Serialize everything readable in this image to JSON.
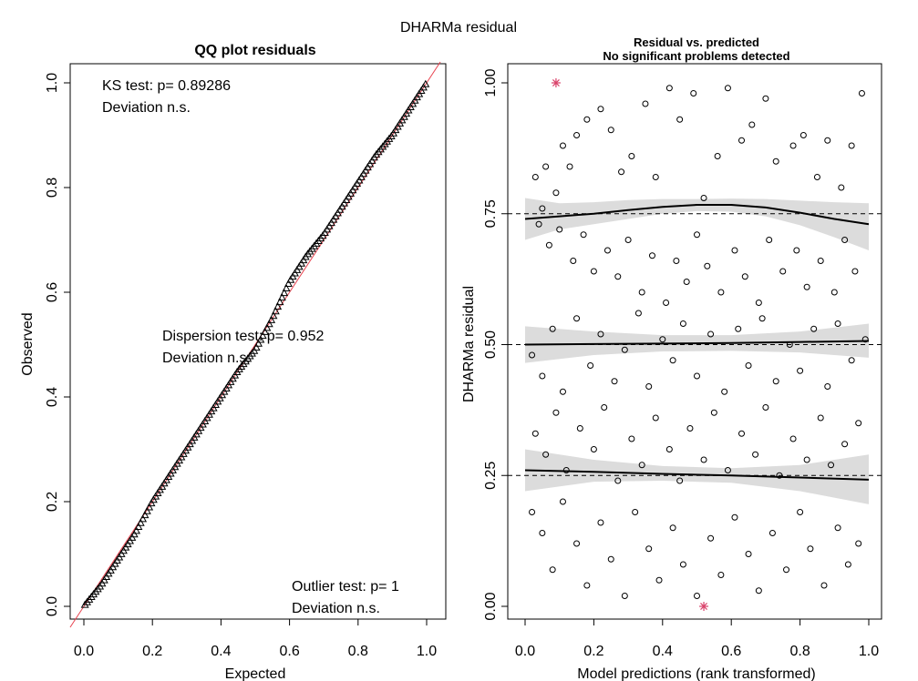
{
  "figure": {
    "title": "DHARMa residual"
  },
  "chart_data": [
    {
      "type": "scatter",
      "panel": "left",
      "title": "QQ plot residuals",
      "xlabel": "Expected",
      "ylabel": "Observed",
      "xlim": [
        0,
        1
      ],
      "ylim": [
        0,
        1
      ],
      "xticks": [
        "0.0",
        "0.2",
        "0.4",
        "0.6",
        "0.8",
        "1.0"
      ],
      "yticks": [
        "0.0",
        "0.2",
        "0.4",
        "0.6",
        "0.8",
        "1.0"
      ],
      "series": [
        {
          "marker": "open-triangle",
          "color": "#000000",
          "x": [
            0.0,
            0.05,
            0.1,
            0.15,
            0.2,
            0.25,
            0.3,
            0.35,
            0.4,
            0.45,
            0.5,
            0.55,
            0.6,
            0.65,
            0.7,
            0.75,
            0.8,
            0.85,
            0.9,
            0.95,
            1.0
          ],
          "y": [
            0.0,
            0.04,
            0.09,
            0.14,
            0.2,
            0.25,
            0.3,
            0.35,
            0.4,
            0.45,
            0.49,
            0.55,
            0.62,
            0.67,
            0.71,
            0.76,
            0.81,
            0.86,
            0.9,
            0.95,
            1.0
          ]
        }
      ],
      "reference_line": {
        "intercept": 0,
        "slope": 1,
        "color": "#e8434f"
      },
      "annotations": [
        {
          "lines": [
            "KS test: p= 0.89286",
            "Deviation  n.s."
          ]
        },
        {
          "lines": [
            "Dispersion test: p= 0.952",
            "Deviation  n.s."
          ]
        },
        {
          "lines": [
            "Outlier test: p= 1",
            "Deviation  n.s."
          ]
        }
      ]
    },
    {
      "type": "scatter",
      "panel": "right",
      "title": "Residual vs. predicted",
      "subtitle": "No significant problems detected",
      "xlabel": "Model predictions (rank transformed)",
      "ylabel": "DHARMa residual",
      "xlim": [
        0,
        1
      ],
      "ylim": [
        0,
        1
      ],
      "xticks": [
        "0.0",
        "0.2",
        "0.4",
        "0.6",
        "0.8",
        "1.0"
      ],
      "yticks": [
        "0.00",
        "0.25",
        "0.50",
        "0.75",
        "1.00"
      ],
      "reference_lines_y": [
        0.25,
        0.5,
        0.75
      ],
      "points": [
        [
          0.03,
          0.82
        ],
        [
          0.05,
          0.76
        ],
        [
          0.06,
          0.84
        ],
        [
          0.09,
          0.79
        ],
        [
          0.11,
          0.88
        ],
        [
          0.13,
          0.84
        ],
        [
          0.15,
          0.9
        ],
        [
          0.18,
          0.93
        ],
        [
          0.22,
          0.95
        ],
        [
          0.25,
          0.91
        ],
        [
          0.28,
          0.83
        ],
        [
          0.31,
          0.86
        ],
        [
          0.35,
          0.96
        ],
        [
          0.38,
          0.82
        ],
        [
          0.42,
          0.99
        ],
        [
          0.45,
          0.93
        ],
        [
          0.49,
          0.98
        ],
        [
          0.52,
          0.78
        ],
        [
          0.56,
          0.86
        ],
        [
          0.59,
          0.99
        ],
        [
          0.63,
          0.89
        ],
        [
          0.66,
          0.92
        ],
        [
          0.7,
          0.97
        ],
        [
          0.73,
          0.85
        ],
        [
          0.78,
          0.88
        ],
        [
          0.81,
          0.9
        ],
        [
          0.85,
          0.82
        ],
        [
          0.88,
          0.89
        ],
        [
          0.92,
          0.8
        ],
        [
          0.95,
          0.88
        ],
        [
          0.98,
          0.98
        ],
        [
          0.04,
          0.73
        ],
        [
          0.07,
          0.69
        ],
        [
          0.1,
          0.72
        ],
        [
          0.14,
          0.66
        ],
        [
          0.17,
          0.71
        ],
        [
          0.2,
          0.64
        ],
        [
          0.24,
          0.68
        ],
        [
          0.27,
          0.63
        ],
        [
          0.3,
          0.7
        ],
        [
          0.34,
          0.6
        ],
        [
          0.37,
          0.67
        ],
        [
          0.41,
          0.58
        ],
        [
          0.44,
          0.66
        ],
        [
          0.47,
          0.62
        ],
        [
          0.5,
          0.71
        ],
        [
          0.53,
          0.65
        ],
        [
          0.57,
          0.6
        ],
        [
          0.61,
          0.68
        ],
        [
          0.64,
          0.63
        ],
        [
          0.68,
          0.58
        ],
        [
          0.71,
          0.7
        ],
        [
          0.75,
          0.64
        ],
        [
          0.79,
          0.68
        ],
        [
          0.82,
          0.61
        ],
        [
          0.86,
          0.66
        ],
        [
          0.9,
          0.6
        ],
        [
          0.93,
          0.7
        ],
        [
          0.96,
          0.64
        ],
        [
          0.02,
          0.48
        ],
        [
          0.05,
          0.44
        ],
        [
          0.08,
          0.53
        ],
        [
          0.11,
          0.41
        ],
        [
          0.15,
          0.55
        ],
        [
          0.19,
          0.46
        ],
        [
          0.22,
          0.52
        ],
        [
          0.26,
          0.43
        ],
        [
          0.29,
          0.49
        ],
        [
          0.33,
          0.56
        ],
        [
          0.36,
          0.42
        ],
        [
          0.4,
          0.51
        ],
        [
          0.43,
          0.47
        ],
        [
          0.46,
          0.54
        ],
        [
          0.5,
          0.44
        ],
        [
          0.54,
          0.52
        ],
        [
          0.58,
          0.41
        ],
        [
          0.62,
          0.53
        ],
        [
          0.65,
          0.46
        ],
        [
          0.69,
          0.55
        ],
        [
          0.73,
          0.43
        ],
        [
          0.77,
          0.5
        ],
        [
          0.8,
          0.45
        ],
        [
          0.84,
          0.53
        ],
        [
          0.88,
          0.42
        ],
        [
          0.91,
          0.54
        ],
        [
          0.95,
          0.47
        ],
        [
          0.99,
          0.51
        ],
        [
          0.03,
          0.33
        ],
        [
          0.06,
          0.29
        ],
        [
          0.09,
          0.37
        ],
        [
          0.12,
          0.26
        ],
        [
          0.16,
          0.34
        ],
        [
          0.2,
          0.3
        ],
        [
          0.23,
          0.38
        ],
        [
          0.27,
          0.24
        ],
        [
          0.31,
          0.32
        ],
        [
          0.34,
          0.27
        ],
        [
          0.38,
          0.36
        ],
        [
          0.42,
          0.3
        ],
        [
          0.45,
          0.24
        ],
        [
          0.48,
          0.34
        ],
        [
          0.52,
          0.28
        ],
        [
          0.55,
          0.37
        ],
        [
          0.59,
          0.26
        ],
        [
          0.63,
          0.33
        ],
        [
          0.67,
          0.29
        ],
        [
          0.7,
          0.38
        ],
        [
          0.74,
          0.25
        ],
        [
          0.78,
          0.32
        ],
        [
          0.82,
          0.28
        ],
        [
          0.86,
          0.36
        ],
        [
          0.89,
          0.27
        ],
        [
          0.93,
          0.31
        ],
        [
          0.97,
          0.35
        ],
        [
          0.02,
          0.18
        ],
        [
          0.05,
          0.14
        ],
        [
          0.08,
          0.07
        ],
        [
          0.11,
          0.2
        ],
        [
          0.15,
          0.12
        ],
        [
          0.18,
          0.04
        ],
        [
          0.22,
          0.16
        ],
        [
          0.25,
          0.09
        ],
        [
          0.29,
          0.02
        ],
        [
          0.32,
          0.18
        ],
        [
          0.36,
          0.11
        ],
        [
          0.39,
          0.05
        ],
        [
          0.43,
          0.15
        ],
        [
          0.46,
          0.08
        ],
        [
          0.5,
          0.02
        ],
        [
          0.54,
          0.13
        ],
        [
          0.57,
          0.06
        ],
        [
          0.61,
          0.17
        ],
        [
          0.65,
          0.1
        ],
        [
          0.68,
          0.03
        ],
        [
          0.72,
          0.14
        ],
        [
          0.76,
          0.07
        ],
        [
          0.8,
          0.18
        ],
        [
          0.83,
          0.11
        ],
        [
          0.87,
          0.04
        ],
        [
          0.91,
          0.15
        ],
        [
          0.94,
          0.08
        ],
        [
          0.97,
          0.12
        ]
      ],
      "outlier_points": [
        [
          0.09,
          1.0
        ],
        [
          0.52,
          0.0
        ]
      ],
      "outlier_color": "#d9426a",
      "quantile_curves": [
        {
          "q": 0.75,
          "x": [
            0.0,
            0.1,
            0.2,
            0.3,
            0.4,
            0.5,
            0.6,
            0.7,
            0.8,
            0.9,
            1.0
          ],
          "y": [
            0.74,
            0.745,
            0.75,
            0.757,
            0.763,
            0.767,
            0.767,
            0.762,
            0.752,
            0.74,
            0.73
          ],
          "band_low": [
            0.7,
            0.72,
            0.73,
            0.74,
            0.75,
            0.755,
            0.754,
            0.745,
            0.728,
            0.705,
            0.68
          ],
          "band_high": [
            0.78,
            0.77,
            0.772,
            0.776,
            0.778,
            0.778,
            0.779,
            0.778,
            0.775,
            0.772,
            0.77
          ]
        },
        {
          "q": 0.5,
          "x": [
            0.0,
            0.2,
            0.4,
            0.6,
            0.8,
            1.0
          ],
          "y": [
            0.5,
            0.501,
            0.502,
            0.503,
            0.505,
            0.507
          ],
          "band_low": [
            0.465,
            0.48,
            0.487,
            0.488,
            0.485,
            0.475
          ],
          "band_high": [
            0.535,
            0.525,
            0.518,
            0.518,
            0.525,
            0.54
          ]
        },
        {
          "q": 0.25,
          "x": [
            0.0,
            0.2,
            0.4,
            0.6,
            0.8,
            1.0
          ],
          "y": [
            0.26,
            0.257,
            0.253,
            0.25,
            0.246,
            0.242
          ],
          "band_low": [
            0.22,
            0.238,
            0.24,
            0.236,
            0.22,
            0.195
          ],
          "band_high": [
            0.3,
            0.28,
            0.268,
            0.264,
            0.27,
            0.29
          ]
        }
      ]
    }
  ]
}
